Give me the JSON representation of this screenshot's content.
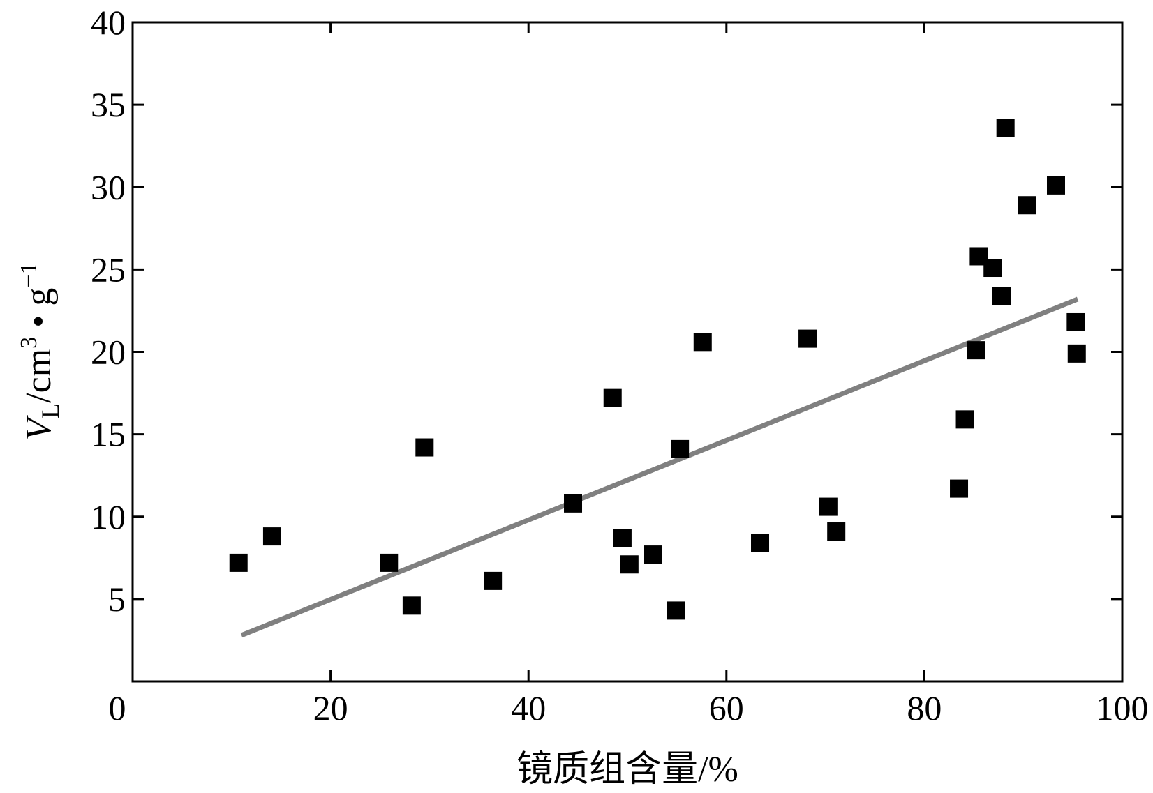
{
  "chart_data": {
    "type": "scatter",
    "title": "",
    "xlabel": "镜质组含量/%",
    "ylabel": {
      "symbol": "V",
      "subscript": "L",
      "unit_prefix": "/cm",
      "unit_power": "3",
      "unit_mid": " • g",
      "unit_power2": "−1"
    },
    "xlim": [
      0,
      100
    ],
    "ylim": [
      0,
      40
    ],
    "x_ticks": [
      0,
      20,
      40,
      60,
      80,
      100
    ],
    "y_ticks": [
      5,
      10,
      15,
      20,
      25,
      30,
      35,
      40
    ],
    "grid": false,
    "legend": "none",
    "marker": "square",
    "marker_color": "#000000",
    "trendline_color": "#808080",
    "points": [
      {
        "x": 10.7,
        "y": 7.2
      },
      {
        "x": 14.1,
        "y": 8.8
      },
      {
        "x": 25.9,
        "y": 7.2
      },
      {
        "x": 28.2,
        "y": 4.6
      },
      {
        "x": 29.5,
        "y": 14.2
      },
      {
        "x": 36.4,
        "y": 6.1
      },
      {
        "x": 44.5,
        "y": 10.8
      },
      {
        "x": 48.5,
        "y": 17.2
      },
      {
        "x": 49.5,
        "y": 8.7
      },
      {
        "x": 50.2,
        "y": 7.1
      },
      {
        "x": 52.6,
        "y": 7.7
      },
      {
        "x": 54.9,
        "y": 4.3
      },
      {
        "x": 55.3,
        "y": 14.1
      },
      {
        "x": 57.6,
        "y": 20.6
      },
      {
        "x": 63.4,
        "y": 8.4
      },
      {
        "x": 68.2,
        "y": 20.8
      },
      {
        "x": 70.3,
        "y": 10.6
      },
      {
        "x": 71.1,
        "y": 9.1
      },
      {
        "x": 83.5,
        "y": 11.7
      },
      {
        "x": 84.1,
        "y": 15.9
      },
      {
        "x": 85.2,
        "y": 20.1
      },
      {
        "x": 85.5,
        "y": 25.8
      },
      {
        "x": 86.9,
        "y": 25.1
      },
      {
        "x": 87.8,
        "y": 23.4
      },
      {
        "x": 88.2,
        "y": 33.6
      },
      {
        "x": 90.4,
        "y": 28.9
      },
      {
        "x": 93.3,
        "y": 30.1
      },
      {
        "x": 95.3,
        "y": 21.8
      },
      {
        "x": 95.4,
        "y": 19.9
      }
    ],
    "trendline": {
      "x": [
        11,
        95.5
      ],
      "y": [
        2.8,
        23.2
      ]
    }
  }
}
